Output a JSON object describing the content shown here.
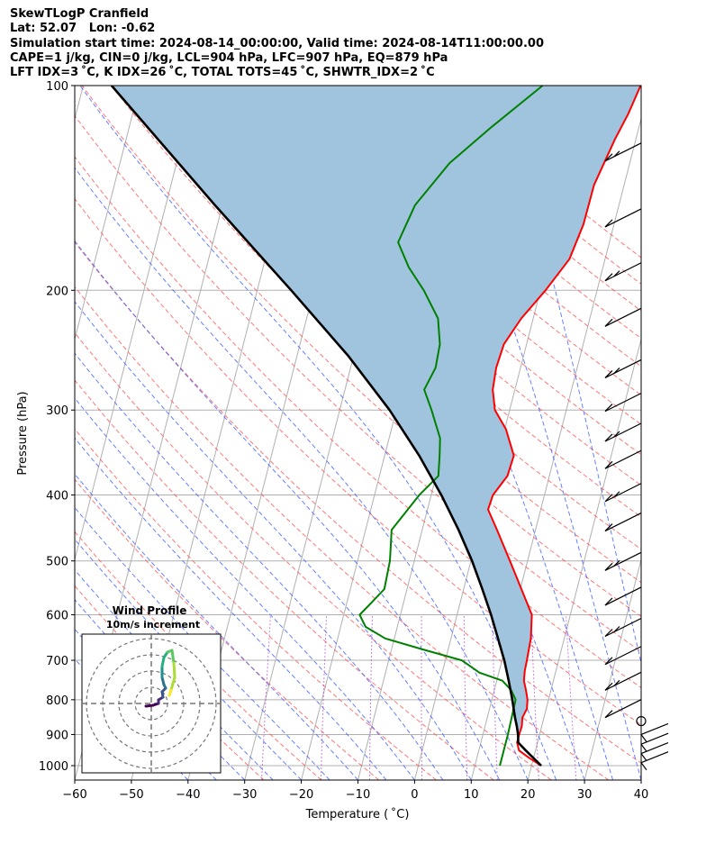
{
  "header": {
    "line1": "SkewTLogP Cranfield",
    "line2": "Lat: 52.07   Lon: -0.62",
    "line3": "Simulation start time: 2024-08-14_00:00:00, Valid time: 2024-08-14T11:00:00.00",
    "line4": "CAPE=1 j/kg, CIN=0 j/kg, LCL=904 hPa, LFC=907 hPa, EQ=879 hPa",
    "line5": "LFT IDX=3 ˚C, K IDX=26 ˚C, TOTAL TOTS=45 ˚C, SHWTR_IDX=2 ˚C"
  },
  "chart_data": {
    "type": "skew-t",
    "xlabel": "Temperature ( ˚C)",
    "ylabel": "Pressure (hPa)",
    "x_ticks": [
      -60,
      -50,
      -40,
      -30,
      -20,
      -10,
      0,
      10,
      20,
      30,
      40
    ],
    "y_ticks": [
      100,
      200,
      300,
      400,
      500,
      600,
      700,
      800,
      900,
      1000
    ],
    "xlim": [
      -60,
      40
    ],
    "ylim": [
      1050,
      100
    ],
    "y_scale": "log",
    "grid": true,
    "series": [
      {
        "key": "temperature",
        "color": "#ff0000",
        "points": [
          [
            1000,
            21.7
          ],
          [
            975,
            19.3
          ],
          [
            950,
            17.1
          ],
          [
            925,
            16.4
          ],
          [
            900,
            16.4
          ],
          [
            875,
            16.5
          ],
          [
            850,
            16.2
          ],
          [
            825,
            16.6
          ],
          [
            800,
            16.3
          ],
          [
            775,
            15.6
          ],
          [
            750,
            14.8
          ],
          [
            725,
            14.5
          ],
          [
            700,
            14.4
          ],
          [
            650,
            14.1
          ],
          [
            600,
            13.2
          ],
          [
            550,
            10.2
          ],
          [
            500,
            6.9
          ],
          [
            450,
            3.2
          ],
          [
            420,
            0.7
          ],
          [
            400,
            0.9
          ],
          [
            375,
            2.6
          ],
          [
            350,
            2.8
          ],
          [
            320,
            0.2
          ],
          [
            300,
            -2.6
          ],
          [
            280,
            -3.9
          ],
          [
            260,
            -4.3
          ],
          [
            240,
            -4.0
          ],
          [
            220,
            -2.1
          ],
          [
            200,
            0.9
          ],
          [
            180,
            3.7
          ],
          [
            160,
            4.6
          ],
          [
            140,
            4.7
          ],
          [
            120,
            6.3
          ],
          [
            110,
            7.5
          ],
          [
            100,
            8.4
          ]
        ]
      },
      {
        "key": "dewpoint",
        "color": "#008000",
        "points": [
          [
            1000,
            14.4
          ],
          [
            950,
            14.4
          ],
          [
            900,
            14.4
          ],
          [
            850,
            14.3
          ],
          [
            800,
            14.2
          ],
          [
            775,
            13.0
          ],
          [
            750,
            11.0
          ],
          [
            730,
            6.6
          ],
          [
            700,
            2.9
          ],
          [
            675,
            -4.4
          ],
          [
            650,
            -11.6
          ],
          [
            625,
            -15.6
          ],
          [
            600,
            -17.2
          ],
          [
            575,
            -15.6
          ],
          [
            550,
            -14.0
          ],
          [
            500,
            -14.3
          ],
          [
            450,
            -15.4
          ],
          [
            400,
            -12.1
          ],
          [
            375,
            -9.6
          ],
          [
            350,
            -10.3
          ],
          [
            330,
            -11.0
          ],
          [
            300,
            -13.8
          ],
          [
            280,
            -16.0
          ],
          [
            260,
            -15.0
          ],
          [
            240,
            -15.3
          ],
          [
            220,
            -16.8
          ],
          [
            200,
            -20.6
          ],
          [
            185,
            -24.3
          ],
          [
            170,
            -27.3
          ],
          [
            150,
            -26.0
          ],
          [
            130,
            -21.8
          ],
          [
            115,
            -16.0
          ],
          [
            100,
            -8.9
          ]
        ]
      },
      {
        "key": "parcel",
        "color": "#000000",
        "points": [
          [
            1000,
            21.7
          ],
          [
            950,
            18.3
          ],
          [
            925,
            16.6
          ],
          [
            900,
            16.2
          ],
          [
            875,
            15.6
          ],
          [
            850,
            14.9
          ],
          [
            800,
            13.6
          ],
          [
            750,
            12.1
          ],
          [
            700,
            10.4
          ],
          [
            650,
            8.3
          ],
          [
            600,
            6.0
          ],
          [
            550,
            3.3
          ],
          [
            500,
            0.2
          ],
          [
            450,
            -3.6
          ],
          [
            400,
            -8.2
          ],
          [
            350,
            -13.9
          ],
          [
            300,
            -21.2
          ],
          [
            250,
            -30.9
          ],
          [
            200,
            -44.0
          ],
          [
            150,
            -61.3
          ],
          [
            100,
            -85.0
          ]
        ]
      }
    ],
    "cape_region": {
      "fill": "#a0c4de",
      "from_p": 900,
      "to_p": 100
    },
    "wind_barbs": {
      "x_temperature": 36.5,
      "color": "#000000"
    },
    "inset": {
      "title": "Wind Profile",
      "subtitle": "10m/s increment",
      "color_scale": "viridis",
      "rings": 4
    }
  }
}
